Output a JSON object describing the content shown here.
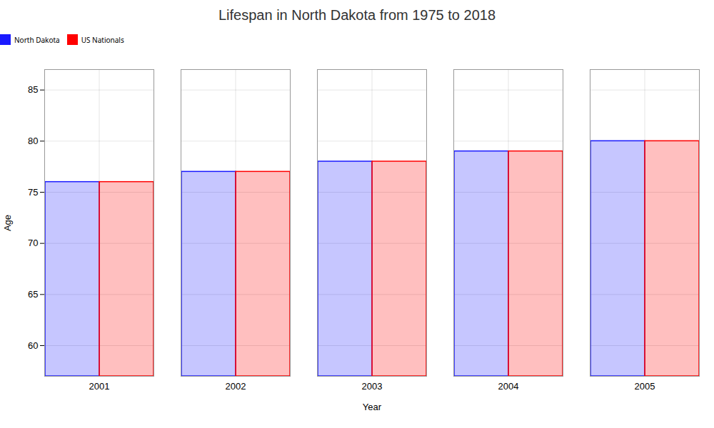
{
  "chart_data": {
    "type": "bar",
    "title": "Lifespan in North Dakota from 1975 to 2018",
    "xlabel": "Year",
    "ylabel": "Age",
    "categories": [
      "2001",
      "2002",
      "2003",
      "2004",
      "2005"
    ],
    "series": [
      {
        "name": "North Dakota",
        "color": "#1a1aff",
        "values": [
          76,
          77,
          78,
          79,
          80
        ]
      },
      {
        "name": "US Nationals",
        "color": "#ff0000",
        "values": [
          76,
          77,
          78,
          79,
          80
        ]
      }
    ],
    "ylim": [
      57,
      87
    ],
    "yticks": [
      60,
      65,
      70,
      75,
      80,
      85
    ],
    "grid": true,
    "legend": "top"
  }
}
